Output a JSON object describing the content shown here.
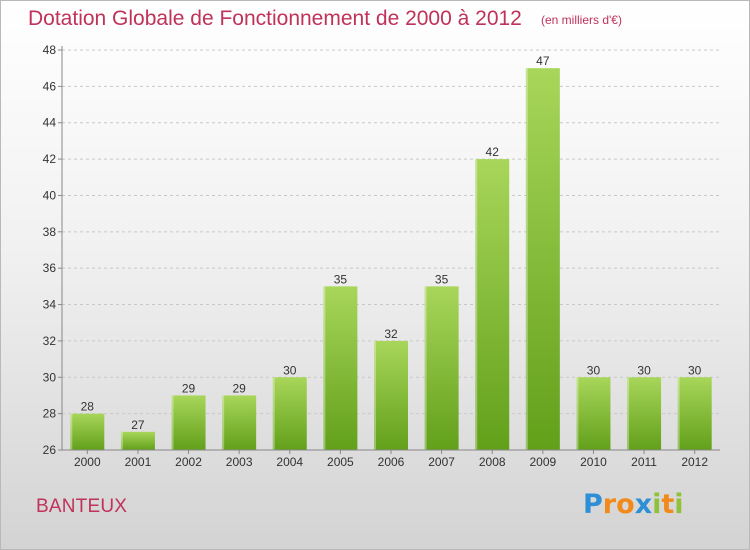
{
  "header": {
    "title": "Dotation Globale de Fonctionnement de 2000 à 2012",
    "unit": "(en milliers d'€)"
  },
  "footer": {
    "place": "BANTEUX",
    "brand": [
      "P",
      "r",
      "o",
      "x",
      "i",
      "t",
      "i"
    ],
    "brand_colors": [
      "#2f8fd6",
      "#f18a1a",
      "#f18a1a",
      "#2f8fd6",
      "#8fc23a",
      "#f18a1a",
      "#8fc23a"
    ]
  },
  "chart_data": {
    "type": "bar",
    "categories": [
      "2000",
      "2001",
      "2002",
      "2003",
      "2004",
      "2005",
      "2006",
      "2007",
      "2008",
      "2009",
      "2010",
      "2011",
      "2012"
    ],
    "values": [
      28,
      27,
      29,
      29,
      30,
      35,
      32,
      35,
      42,
      47,
      30,
      30,
      30
    ],
    "data_labels": [
      "28",
      "27",
      "29",
      "29",
      "30",
      "35",
      "32",
      "35",
      "42",
      "47",
      "30",
      "30",
      "30"
    ],
    "yticks": [
      "26",
      "28",
      "30",
      "32",
      "34",
      "36",
      "38",
      "40",
      "42",
      "44",
      "46",
      "48"
    ],
    "ylim": [
      26,
      48
    ],
    "grid": "horizontal dashed",
    "bar_color_top": "#a8d65a",
    "bar_color_bottom": "#62a01a",
    "xlabel": "",
    "ylabel": ""
  }
}
